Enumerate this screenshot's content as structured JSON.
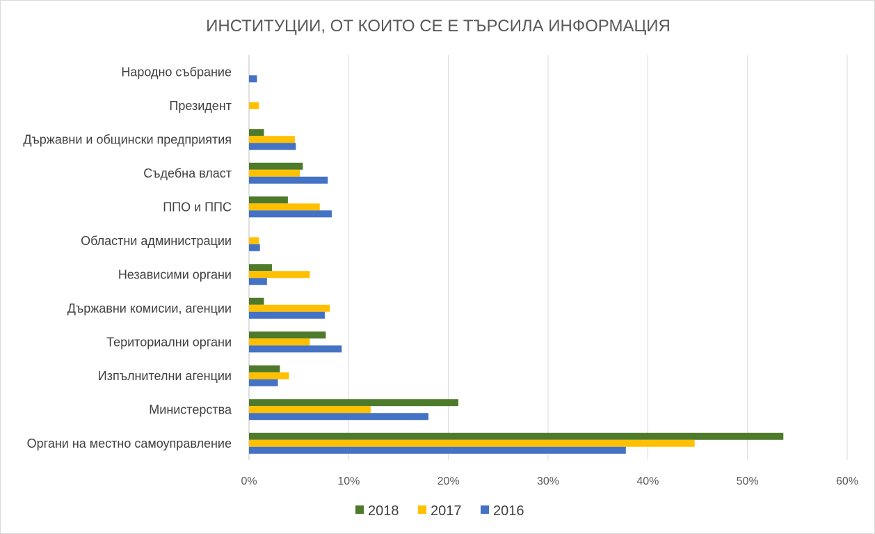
{
  "chart_data": {
    "type": "bar",
    "orientation": "horizontal",
    "title": "ИНСТИТУЦИИ, ОТ КОИТО СЕ Е ТЪРСИЛА ИНФОРМАЦИЯ",
    "xlabel": "",
    "ylabel": "",
    "xlim": [
      0,
      60
    ],
    "x_ticks": [
      "0%",
      "10%",
      "20%",
      "30%",
      "40%",
      "50%",
      "60%"
    ],
    "grid": true,
    "legend_position": "bottom",
    "categories": [
      "Народно събрание",
      "Президент",
      "Държавни и общински предприятия",
      "Съдебна власт",
      "ППО и ППС",
      "Областни администрации",
      "Независими органи",
      "Държавни комисии, агенции",
      "Териториални органи",
      "Изпълнителни агенции",
      "Министерства",
      "Органи на местно самоуправление"
    ],
    "series": [
      {
        "name": "2018",
        "color": "#4e7a2b",
        "values": [
          0,
          0,
          1.5,
          5.4,
          3.9,
          0,
          2.3,
          1.5,
          7.7,
          3.1,
          21.0,
          53.6
        ]
      },
      {
        "name": "2017",
        "color": "#ffc000",
        "values": [
          0,
          1.0,
          4.6,
          5.1,
          7.1,
          1.0,
          6.1,
          8.1,
          6.1,
          4.0,
          12.2,
          44.7
        ]
      },
      {
        "name": "2016",
        "color": "#4472c4",
        "values": [
          0.8,
          0,
          4.7,
          7.9,
          8.3,
          1.1,
          1.8,
          7.6,
          9.3,
          2.9,
          18.0,
          37.8
        ]
      }
    ]
  }
}
